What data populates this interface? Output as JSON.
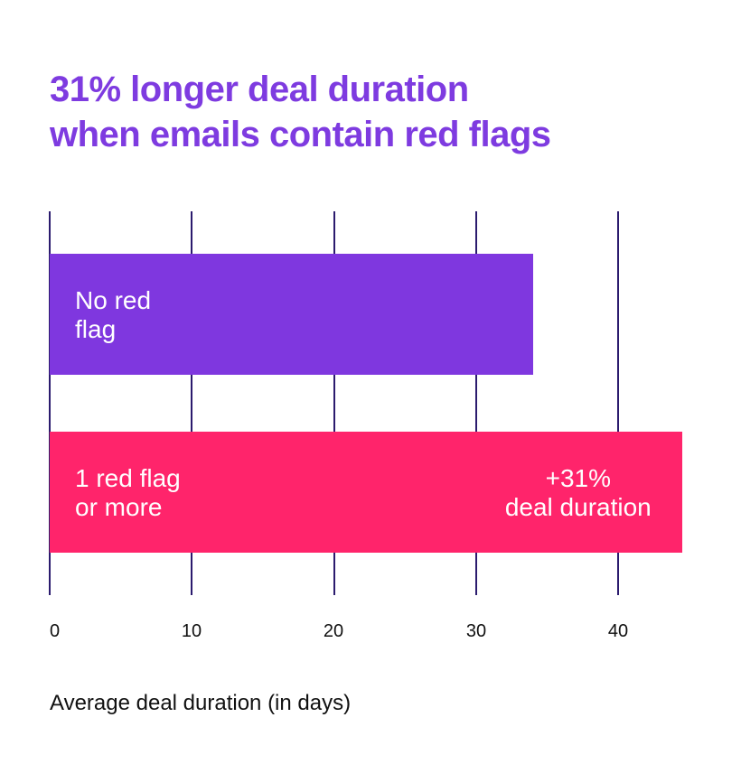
{
  "colors": {
    "title": "#7e3be0",
    "bar_no_flag": "#7f37df",
    "bar_red_flag": "#ff246b",
    "gridline": "#2b1b6e"
  },
  "title_lines": [
    "31% longer deal duration",
    "when emails contain red flags"
  ],
  "bars": [
    {
      "label_lines": [
        "No red",
        "flag"
      ],
      "annotation_lines": []
    },
    {
      "label_lines": [
        "1 red flag",
        "or more"
      ],
      "annotation_lines": [
        "+31%",
        "deal duration"
      ]
    }
  ],
  "x_ticks": [
    "0",
    "10",
    "20",
    "30",
    "40"
  ],
  "x_axis_label": "Average deal duration (in days)",
  "chart_data": {
    "type": "bar",
    "orientation": "horizontal",
    "title": "31% longer deal duration when emails contain red flags",
    "categories": [
      "No red flag",
      "1 red flag or more"
    ],
    "values": [
      34,
      44.5
    ],
    "annotations": [
      {
        "category": "1 red flag or more",
        "text": "+31% deal duration"
      }
    ],
    "xlabel": "Average deal duration (in days)",
    "ylabel": "",
    "xlim": [
      0,
      45
    ],
    "x_ticks": [
      0,
      10,
      20,
      30,
      40
    ],
    "grid": true,
    "legend": "none",
    "colors": [
      "#7f37df",
      "#ff246b"
    ]
  }
}
